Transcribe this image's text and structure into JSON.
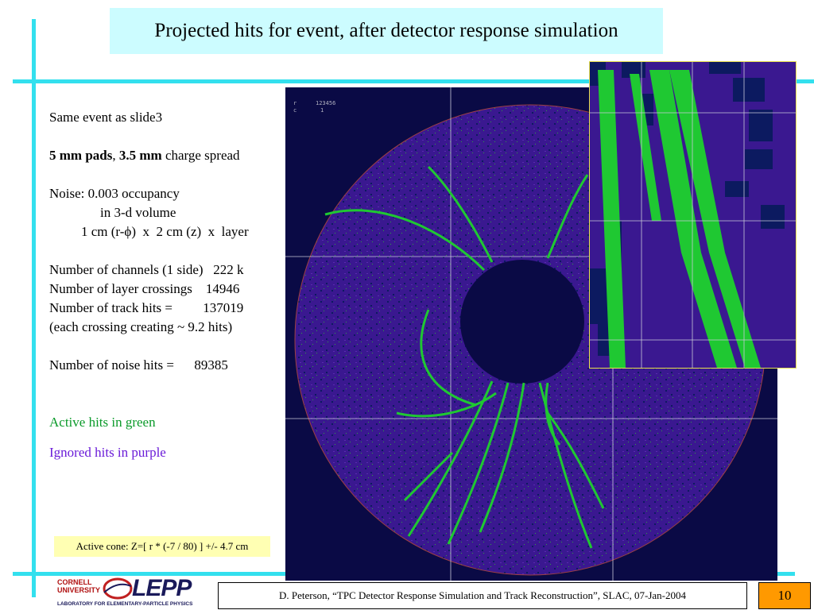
{
  "title": "Projected hits for event, after detector response simulation",
  "bullets": {
    "same_event": "Same event as slide3",
    "pads_bold1": "5 mm pads",
    "pads_sep": ", ",
    "pads_bold2": "3.5 mm",
    "pads_rest": " charge spread",
    "noise_line1": "Noise: 0.003 occupancy",
    "noise_line2": "in 3-d volume",
    "noise_line3": "1 cm (r-ϕ)  x  2 cm (z)  x  layer",
    "channels": "Number of channels (1 side)   222 k",
    "crossings": "Number of layer crossings    14946",
    "track_hits": "Number of track hits =         137019",
    "each_crossing": "(each crossing creating ~ 9.2 hits)",
    "noise_hits": "Number of noise hits =      89385",
    "active": "Active hits in green",
    "ignored": "Ignored hits in purple"
  },
  "cone_box": "Active cone:  Z=[ r * (-7 / 80) ]  +/-  4.7 cm",
  "event_display": {
    "label_r": "r",
    "value_r": "123456",
    "label_c": "c",
    "value_c": "1"
  },
  "logo": {
    "line1": "CORNELL",
    "line2": "UNIVERSITY",
    "name": "LEPP",
    "lab": "LABORATORY FOR ELEMENTARY-PARTICLE PHYSICS"
  },
  "footer": "D. Peterson, “TPC Detector Response Simulation and Track Reconstruction”, SLAC, 07-Jan-2004",
  "page_number": "10",
  "colors": {
    "accent_rule": "#33e0ee",
    "title_bg": "#ccfcff",
    "active_hits": "#0b9a2a",
    "ignored_hits": "#6a1bd8",
    "cone_bg": "#ffffb3",
    "page_bg": "#ff9900",
    "display_bg": "#0a0a45"
  }
}
